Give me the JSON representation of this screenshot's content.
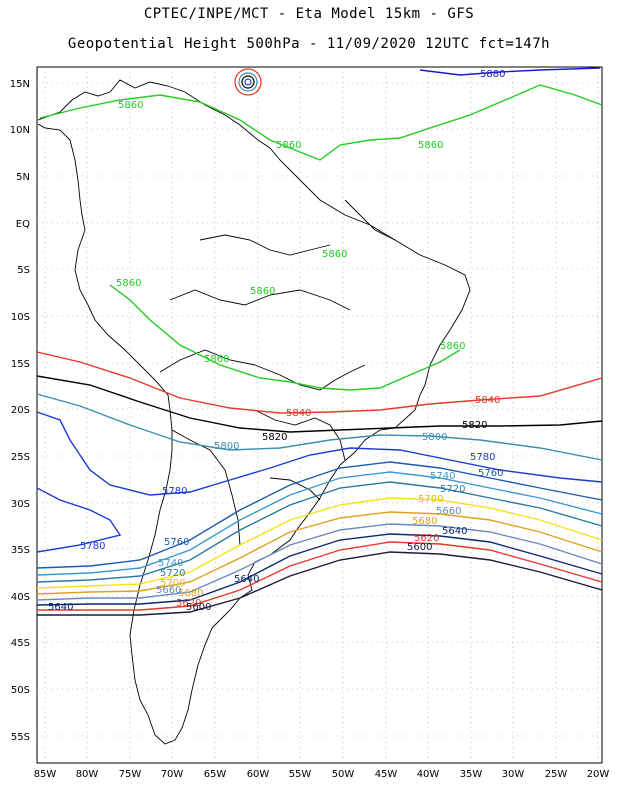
{
  "title_line1": "CPTEC/INPE/MCT - Eta Model 15km - GFS",
  "title_line2": "Geopotential Height 500hPa - 11/09/2020 12UTC fct=147h",
  "lat_labels": [
    "15N",
    "10N",
    "5N",
    "EQ",
    "5S",
    "10S",
    "15S",
    "20S",
    "25S",
    "30S",
    "35S",
    "40S",
    "45S",
    "50S",
    "55S"
  ],
  "lon_labels": [
    "85W",
    "80W",
    "75W",
    "70W",
    "65W",
    "60W",
    "55W",
    "50W",
    "45W",
    "40W",
    "35W",
    "30W",
    "25W",
    "20W"
  ],
  "contours": {
    "c5880": "5880",
    "c5860": "5860",
    "c5840": "5840",
    "c5820": "5820",
    "c5800": "5800",
    "c5780": "5780",
    "c5760": "5760",
    "c5740": "5740",
    "c5720": "5720",
    "c5700": "5700",
    "c5680": "5680",
    "c5660": "5660",
    "c5640": "5640",
    "c5620": "5620",
    "c5600": "5600"
  },
  "colors": {
    "c5880": "#1a1acc",
    "c5860": "#22cc22",
    "c5840": "#e8392a",
    "c5820": "#000000",
    "c5800": "#3a8fb0",
    "c5780": "#1a3ad6",
    "c5760": "#1a5ab0",
    "c5740": "#3a9ad0",
    "c5720": "#2a7aa0",
    "c5700": "#f5e21a",
    "c5680": "#e0a020",
    "c5660": "#6a8ac0",
    "c5640": "#0a2a70",
    "c5620": "#e8392a",
    "c5600": "#1a1a3a"
  }
}
